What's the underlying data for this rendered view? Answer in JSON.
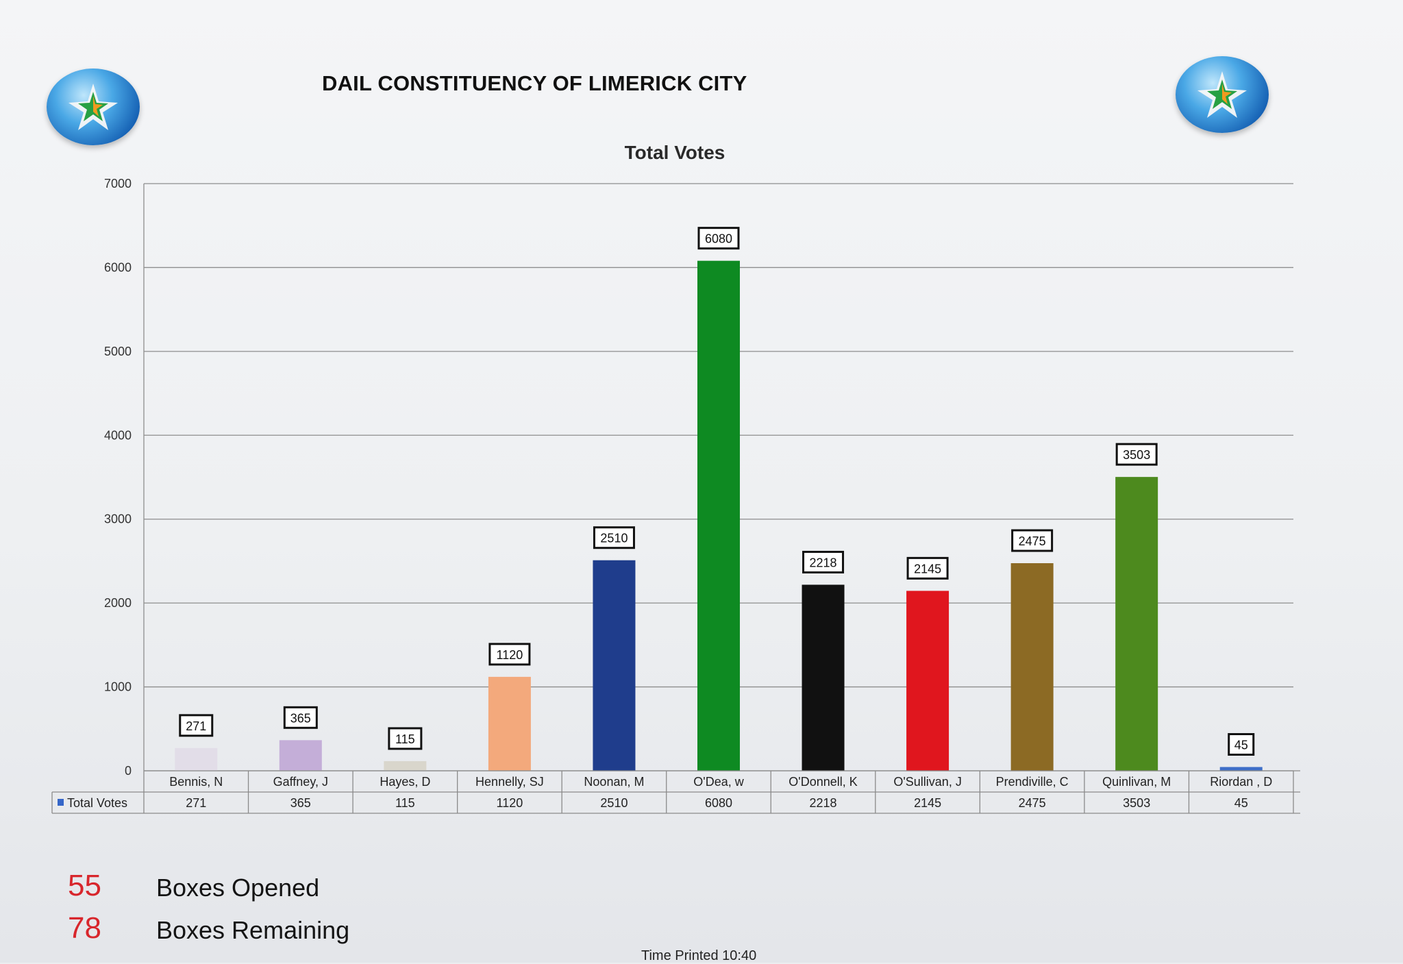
{
  "header": {
    "title": "DAIL CONSTITUENCY OF LIMERICK CITY"
  },
  "logos": [
    {
      "icon": "star-globe-icon"
    },
    {
      "icon": "star-globe-icon"
    }
  ],
  "chart_data": {
    "type": "bar",
    "title": "Total Votes",
    "xlabel": "",
    "ylabel": "",
    "ylim": [
      0,
      7000
    ],
    "yticks": [
      "0",
      "1000",
      "2000",
      "3000",
      "4000",
      "5000",
      "6000",
      "7000"
    ],
    "categories": [
      "Bennis, N",
      "Gaffney, J",
      "Hayes, D",
      "Hennelly, SJ",
      "Noonan, M",
      "O'Dea, w",
      "O'Donnell, K",
      "O'Sullivan, J",
      "Prendiville, C",
      "Quinlivan, M",
      "Riordan , D"
    ],
    "series": [
      {
        "name": "Total Votes",
        "values": [
          271,
          365,
          115,
          1120,
          2510,
          6080,
          2218,
          2145,
          2475,
          3503,
          45
        ]
      }
    ],
    "bar_colors": [
      "#e2dde8",
      "#c4aed8",
      "#d9d6cc",
      "#f3a97c",
      "#1f3d8c",
      "#0e8a22",
      "#111111",
      "#e0161e",
      "#8c6a24",
      "#4d8a1e",
      "#3e6ec8"
    ],
    "legend_color": "#3566c8",
    "grid": true,
    "legend": "data table"
  },
  "stats": [
    {
      "value": "55",
      "label": "Boxes Opened"
    },
    {
      "value": "78",
      "label": "Boxes Remaining"
    }
  ],
  "footer": {
    "time_printed": "Time Printed 10:40"
  }
}
